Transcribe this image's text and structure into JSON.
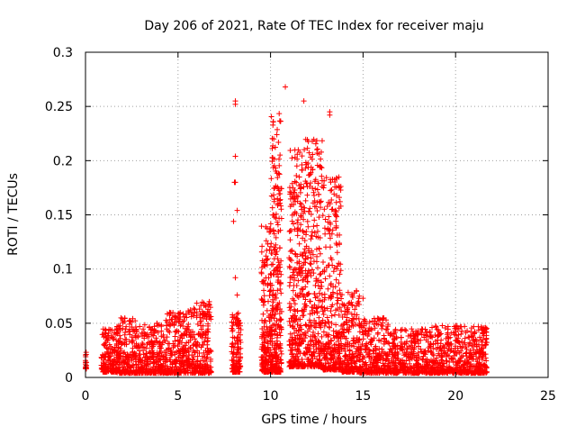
{
  "chart_data": {
    "type": "scatter",
    "title": "Day 206 of 2021, Rate Of TEC Index for receiver maju",
    "xlabel": "GPS time / hours",
    "ylabel": "ROTI / TECUs",
    "xlim": [
      0,
      25
    ],
    "ylim": [
      0,
      0.3
    ],
    "x_ticks": [
      0,
      5,
      10,
      15,
      20,
      25
    ],
    "x_tick_labels": [
      "0",
      "5",
      "10",
      "15",
      "20",
      "25"
    ],
    "y_ticks": [
      0,
      0.05,
      0.1,
      0.15,
      0.2,
      0.25,
      0.3
    ],
    "y_tick_labels": [
      "0",
      "0.05",
      "0.1",
      "0.15",
      "0.2",
      "0.25",
      "0.3"
    ],
    "grid": true,
    "marker": "+",
    "marker_color": "#ff0000",
    "envelope_note": "Dense plus-marker cloud; approximate per-hour ranges of ROTI values read from the plot",
    "series": [
      {
        "name": "ROTI",
        "segments": [
          {
            "x_range": [
              0.0,
              0.05
            ],
            "y_range": [
              0.008,
              0.024
            ]
          },
          {
            "x_range": [
              0.85,
              1.7
            ],
            "y_range": [
              0.005,
              0.045
            ]
          },
          {
            "x_range": [
              1.7,
              2.8
            ],
            "y_range": [
              0.004,
              0.055
            ]
          },
          {
            "x_range": [
              2.8,
              4.3
            ],
            "y_range": [
              0.004,
              0.05
            ]
          },
          {
            "x_range": [
              4.3,
              5.5
            ],
            "y_range": [
              0.004,
              0.06
            ]
          },
          {
            "x_range": [
              5.5,
              6.8
            ],
            "y_range": [
              0.004,
              0.07
            ]
          },
          {
            "x_range": [
              7.9,
              8.4
            ],
            "y_range": [
              0.005,
              0.06
            ]
          },
          {
            "x_range": [
              9.5,
              10.0
            ],
            "y_range": [
              0.005,
              0.14
            ]
          },
          {
            "x_range": [
              10.0,
              10.6
            ],
            "y_range": [
              0.005,
              0.245
            ]
          },
          {
            "x_range": [
              11.0,
              11.8
            ],
            "y_range": [
              0.01,
              0.21
            ]
          },
          {
            "x_range": [
              11.8,
              12.8
            ],
            "y_range": [
              0.01,
              0.22
            ]
          },
          {
            "x_range": [
              12.8,
              13.8
            ],
            "y_range": [
              0.007,
              0.185
            ]
          },
          {
            "x_range": [
              13.8,
              14.8
            ],
            "y_range": [
              0.005,
              0.08
            ]
          },
          {
            "x_range": [
              14.8,
              16.5
            ],
            "y_range": [
              0.004,
              0.055
            ]
          },
          {
            "x_range": [
              16.5,
              18.5
            ],
            "y_range": [
              0.004,
              0.045
            ]
          },
          {
            "x_range": [
              18.5,
              20.5
            ],
            "y_range": [
              0.004,
              0.048
            ]
          },
          {
            "x_range": [
              20.5,
              21.7
            ],
            "y_range": [
              0.004,
              0.047
            ]
          }
        ],
        "outliers": [
          [
            8.1,
            0.255
          ],
          [
            8.1,
            0.252
          ],
          [
            8.1,
            0.204
          ],
          [
            8.05,
            0.18
          ],
          [
            8.1,
            0.18
          ],
          [
            8.2,
            0.154
          ],
          [
            8.0,
            0.144
          ],
          [
            8.1,
            0.092
          ],
          [
            8.2,
            0.076
          ],
          [
            10.8,
            0.268
          ],
          [
            11.8,
            0.255
          ],
          [
            13.2,
            0.245
          ],
          [
            13.2,
            0.242
          ],
          [
            13.8,
            0.158
          ],
          [
            14.8,
            0.075
          ],
          [
            15.0,
            0.073
          ],
          [
            14.2,
            0.06
          ]
        ]
      }
    ]
  }
}
